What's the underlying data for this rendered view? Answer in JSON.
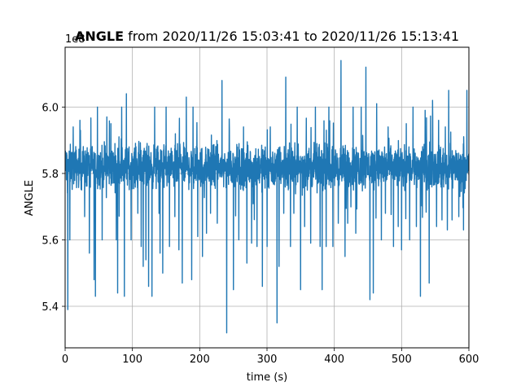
{
  "chart_data": {
    "type": "line",
    "title_bold": "ANGLE",
    "title_rest": " from 2020/11/26 15:03:41 to 2020/11/26 15:13:41",
    "xlabel": "time (s)",
    "ylabel": "ANGLE",
    "offset_label": "1e8",
    "xlim": [
      0,
      600
    ],
    "ylim": [
      5.275,
      6.18
    ],
    "y_scale_factor": 100000000,
    "xticks": [
      0,
      100,
      200,
      300,
      400,
      500,
      600
    ],
    "xtick_labels": [
      "0",
      "100",
      "200",
      "300",
      "400",
      "500",
      "600"
    ],
    "yticks": [
      5.4,
      5.6,
      5.8,
      6.0
    ],
    "ytick_labels": [
      "5.4",
      "5.6",
      "5.8",
      "6.0"
    ],
    "grid": true,
    "color": "#1f77b4",
    "baseline": 5.82,
    "band_halfwidth": 0.07,
    "spikes": [
      {
        "x": 4,
        "y": 5.39
      },
      {
        "x": 7,
        "y": 5.6
      },
      {
        "x": 12,
        "y": 5.94
      },
      {
        "x": 22,
        "y": 5.96
      },
      {
        "x": 29,
        "y": 5.67
      },
      {
        "x": 36,
        "y": 5.56
      },
      {
        "x": 43,
        "y": 5.48
      },
      {
        "x": 45,
        "y": 5.43
      },
      {
        "x": 48,
        "y": 6.0
      },
      {
        "x": 55,
        "y": 5.6
      },
      {
        "x": 62,
        "y": 5.97
      },
      {
        "x": 68,
        "y": 5.95
      },
      {
        "x": 76,
        "y": 5.6
      },
      {
        "x": 78,
        "y": 5.44
      },
      {
        "x": 84,
        "y": 6.0
      },
      {
        "x": 88,
        "y": 5.43
      },
      {
        "x": 91,
        "y": 6.04
      },
      {
        "x": 98,
        "y": 5.6
      },
      {
        "x": 108,
        "y": 5.68
      },
      {
        "x": 113,
        "y": 5.58
      },
      {
        "x": 116,
        "y": 5.52
      },
      {
        "x": 120,
        "y": 5.54
      },
      {
        "x": 124,
        "y": 5.46
      },
      {
        "x": 129,
        "y": 5.43
      },
      {
        "x": 133,
        "y": 6.0
      },
      {
        "x": 141,
        "y": 5.56
      },
      {
        "x": 145,
        "y": 5.5
      },
      {
        "x": 150,
        "y": 6.0
      },
      {
        "x": 155,
        "y": 5.58
      },
      {
        "x": 163,
        "y": 5.67
      },
      {
        "x": 169,
        "y": 5.57
      },
      {
        "x": 174,
        "y": 5.47
      },
      {
        "x": 180,
        "y": 6.03
      },
      {
        "x": 188,
        "y": 5.48
      },
      {
        "x": 190,
        "y": 6.0
      },
      {
        "x": 197,
        "y": 5.61
      },
      {
        "x": 204,
        "y": 5.55
      },
      {
        "x": 210,
        "y": 5.62
      },
      {
        "x": 216,
        "y": 5.68
      },
      {
        "x": 226,
        "y": 5.65
      },
      {
        "x": 233,
        "y": 6.08
      },
      {
        "x": 240,
        "y": 5.32
      },
      {
        "x": 244,
        "y": 5.93
      },
      {
        "x": 250,
        "y": 5.45
      },
      {
        "x": 258,
        "y": 5.6
      },
      {
        "x": 265,
        "y": 5.94
      },
      {
        "x": 270,
        "y": 5.53
      },
      {
        "x": 277,
        "y": 5.59
      },
      {
        "x": 285,
        "y": 5.58
      },
      {
        "x": 293,
        "y": 5.46
      },
      {
        "x": 300,
        "y": 5.58
      },
      {
        "x": 305,
        "y": 5.94
      },
      {
        "x": 315,
        "y": 5.35
      },
      {
        "x": 318,
        "y": 5.52
      },
      {
        "x": 325,
        "y": 5.68
      },
      {
        "x": 328,
        "y": 6.09
      },
      {
        "x": 335,
        "y": 5.58
      },
      {
        "x": 340,
        "y": 5.68
      },
      {
        "x": 345,
        "y": 6.0
      },
      {
        "x": 350,
        "y": 5.45
      },
      {
        "x": 356,
        "y": 5.64
      },
      {
        "x": 365,
        "y": 5.59
      },
      {
        "x": 372,
        "y": 6.0
      },
      {
        "x": 379,
        "y": 5.58
      },
      {
        "x": 382,
        "y": 5.45
      },
      {
        "x": 388,
        "y": 5.58
      },
      {
        "x": 392,
        "y": 6.0
      },
      {
        "x": 398,
        "y": 5.58
      },
      {
        "x": 406,
        "y": 5.65
      },
      {
        "x": 410,
        "y": 6.14
      },
      {
        "x": 416,
        "y": 5.55
      },
      {
        "x": 420,
        "y": 5.65
      },
      {
        "x": 428,
        "y": 6.0
      },
      {
        "x": 432,
        "y": 5.62
      },
      {
        "x": 440,
        "y": 6.0
      },
      {
        "x": 447,
        "y": 6.12
      },
      {
        "x": 453,
        "y": 5.42
      },
      {
        "x": 458,
        "y": 5.44
      },
      {
        "x": 463,
        "y": 6.01
      },
      {
        "x": 470,
        "y": 5.6
      },
      {
        "x": 476,
        "y": 5.68
      },
      {
        "x": 480,
        "y": 5.94
      },
      {
        "x": 488,
        "y": 5.58
      },
      {
        "x": 495,
        "y": 5.64
      },
      {
        "x": 500,
        "y": 5.57
      },
      {
        "x": 507,
        "y": 5.95
      },
      {
        "x": 512,
        "y": 5.6
      },
      {
        "x": 517,
        "y": 6.0
      },
      {
        "x": 522,
        "y": 5.64
      },
      {
        "x": 528,
        "y": 5.43
      },
      {
        "x": 535,
        "y": 5.99
      },
      {
        "x": 541,
        "y": 5.47
      },
      {
        "x": 546,
        "y": 6.02
      },
      {
        "x": 552,
        "y": 5.64
      },
      {
        "x": 560,
        "y": 5.66
      },
      {
        "x": 565,
        "y": 5.94
      },
      {
        "x": 568,
        "y": 5.63
      },
      {
        "x": 570,
        "y": 6.05
      },
      {
        "x": 575,
        "y": 5.66
      },
      {
        "x": 585,
        "y": 5.67
      },
      {
        "x": 592,
        "y": 5.63
      },
      {
        "x": 597,
        "y": 6.05
      }
    ]
  }
}
